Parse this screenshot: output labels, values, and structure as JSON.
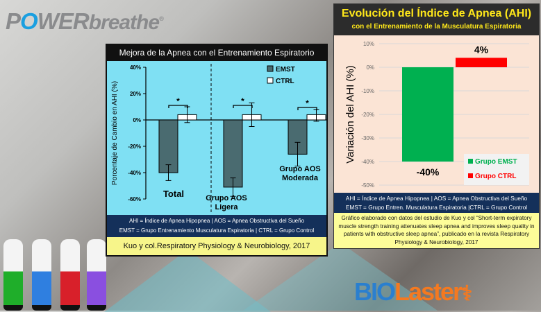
{
  "logo_top": "POWERbreathe",
  "logo_bottom": {
    "part1": "BIO",
    "part2": "Laster"
  },
  "left_panel": {
    "title": "Mejora de la Apnea con el Entrenamiento Espiratorio",
    "abbr_line1": "AHI = Índice de Apnea Hipopnea   |   AOS = Apnea Obstructiva del Sueño",
    "abbr_line2": "EMST = Grupo Entrenamiento Musculatura Espiratoria | CTRL = Grupo Control",
    "citation": "Kuo y col.Respiratory Physiology & Neurobiology, 2017"
  },
  "right_panel": {
    "title": "Evolución del Índice de Apnea (AHI)",
    "subtitle": "con el Entrenamiento de la Musculatura Espiratoria",
    "abbr_line1": "AHI = Índice de Apnea Hipopnea | AOS = Apnea Obstructiva del Sueño",
    "abbr_line2": "EMST = Grupo Entren. Musculatura Espiratoria |CTRL = Grupo Control",
    "citation": "Gráfico elaborado con datos del estudio de Kuo y col “Short-term expiratory muscle strength training attenuates sleep apnea and improves sleep quality in patients with obstructive sleep apnea”, publicado en la revista Respiratory Physiology & Neurobiology, 2017"
  },
  "colors": {
    "emst": "#4a6b70",
    "ctrl": "#ffffff",
    "green": "#00b050",
    "red": "#ff0000"
  },
  "chart_data": [
    {
      "type": "bar",
      "title": "Mejora de la Apnea con el Entrenamiento Espiratorio",
      "ylabel": "Porcentaje de Cambio en AHI (%)",
      "ylim": [
        -60,
        40
      ],
      "yticks": [
        "40%",
        "20%",
        "0%",
        "-20%",
        "-40%",
        "-60%"
      ],
      "ytick_values": [
        40,
        20,
        0,
        -20,
        -40,
        -60
      ],
      "categories": [
        "Total",
        "Grupo AOS Ligera",
        "Grupo AOS Moderada"
      ],
      "category_lines": [
        [
          "Total"
        ],
        [
          "Grupo AOS",
          "Ligera"
        ],
        [
          "Grupo AOS",
          "Moderada"
        ]
      ],
      "legend": [
        "EMST",
        "CTRL"
      ],
      "legend_placement": "top-right",
      "series": [
        {
          "name": "EMST",
          "values": [
            -40,
            -51,
            -26
          ],
          "err_low": [
            -46,
            -58,
            -35
          ],
          "err_high": [
            -34,
            -44,
            -17
          ]
        },
        {
          "name": "CTRL",
          "values": [
            4,
            4,
            4
          ],
          "err_low": [
            -2,
            -5,
            -1
          ],
          "err_high": [
            10,
            13,
            8
          ]
        }
      ],
      "significance": [
        "*",
        "*",
        "*"
      ]
    },
    {
      "type": "bar",
      "title": "Evolución del Índice de Apnea (AHI)",
      "ylabel": "Variación del AHI (%)",
      "ylim": [
        -50,
        10
      ],
      "yticks": [
        "10%",
        "0%",
        "-10%",
        "-20%",
        "-30%",
        "-40%",
        "-50%"
      ],
      "ytick_values": [
        10,
        0,
        -10,
        -20,
        -30,
        -40,
        -50
      ],
      "grid": true,
      "legend_placement": "bottom-right",
      "series": [
        {
          "name": "Grupo EMST",
          "value": -40,
          "label": "-40%"
        },
        {
          "name": "Grupo CTRL",
          "value": 4,
          "label": "4%"
        }
      ]
    }
  ]
}
